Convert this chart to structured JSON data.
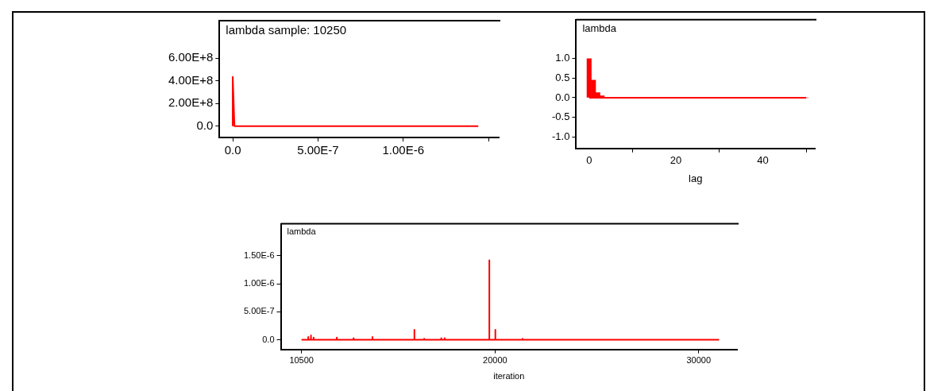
{
  "chart_data": [
    {
      "type": "line",
      "title": "lambda sample: 10250",
      "x": [
        0,
        0,
        1e-08,
        1.44e-06
      ],
      "series": [
        {
          "color": "#ff0000",
          "values": [
            0,
            435000000.0,
            0,
            0
          ]
        }
      ],
      "xlim": [
        -7.8e-08,
        1.56e-06
      ],
      "xticks": [
        {
          "value": 0,
          "label": "0.0"
        },
        {
          "value": 5e-07,
          "label": "5.00E-7"
        },
        {
          "value": 1e-06,
          "label": "1.00E-6"
        },
        {
          "value": 1.5e-06,
          "label": null
        }
      ],
      "ylim": [
        -100000000.0,
        930000000.0
      ],
      "yticks": [
        {
          "value": 0,
          "label": "0.0"
        },
        {
          "value": 200000000.0,
          "label": "2.00E+8"
        },
        {
          "value": 400000000.0,
          "label": "4.00E+8"
        },
        {
          "value": 600000000.0,
          "label": "6.00E+8"
        }
      ],
      "legend": false,
      "marker": "none"
    },
    {
      "type": "bar",
      "title": "lambda",
      "xlabel": "lag",
      "x": [
        0,
        1,
        2,
        3,
        4,
        5,
        6,
        7,
        8,
        9,
        10,
        11,
        12,
        13,
        14,
        15,
        16,
        17,
        18,
        19,
        20,
        21,
        22,
        23,
        24,
        25,
        26,
        27,
        28,
        29,
        30,
        31,
        32,
        33,
        34,
        35,
        36,
        37,
        38,
        39,
        40,
        41,
        42,
        43,
        44,
        45,
        46,
        47,
        48,
        49,
        50
      ],
      "series": [
        {
          "color": "#ff0000",
          "values": [
            1.0,
            0.45,
            0.13,
            0.05,
            0,
            0,
            0,
            0,
            0,
            0,
            0,
            0,
            0,
            0,
            0,
            0,
            0,
            0,
            0,
            0,
            0,
            0,
            0,
            0,
            0,
            0,
            0,
            0,
            0,
            0,
            0,
            0,
            0,
            0,
            0,
            0,
            0,
            0,
            0,
            0,
            0,
            0,
            0,
            0,
            0,
            0,
            0,
            0,
            0,
            0,
            0
          ]
        }
      ],
      "ref_lines": [
        {
          "axis": "y",
          "value": 0,
          "color": "#ff0000"
        }
      ],
      "xlim": [
        -3,
        52
      ],
      "xticks": [
        0,
        20,
        40
      ],
      "ylim": [
        -1.3,
        2.0
      ],
      "yticks": [
        {
          "value": -1,
          "label": "-1.0"
        },
        {
          "value": -0.5,
          "label": "-0.5"
        },
        {
          "value": 0,
          "label": "0.0"
        },
        {
          "value": 0.5,
          "label": "0.5"
        },
        {
          "value": 1,
          "label": "1.0"
        }
      ],
      "legend": false
    },
    {
      "type": "line",
      "title": "lambda",
      "xlabel": "iteration",
      "x": [
        10500,
        10829,
        10830,
        10831,
        10961,
        10962,
        10963,
        11093,
        11094,
        11095,
        12230,
        12231,
        12232,
        13055,
        13056,
        13057,
        13979,
        13980,
        13981,
        16039,
        16040,
        16041,
        16519,
        16520,
        16521,
        17359,
        17360,
        17361,
        17524,
        17525,
        17526,
        19719,
        19720,
        19721,
        20014,
        20015,
        20016,
        21349,
        21350,
        21351,
        31000
      ],
      "series": [
        {
          "color": "#ff0000",
          "values": [
            0,
            0,
            5e-08,
            0,
            0,
            8e-08,
            0,
            0,
            4e-08,
            0,
            0,
            4e-08,
            0,
            0,
            3e-08,
            0,
            0,
            5e-08,
            0,
            0,
            1.8e-07,
            0,
            0,
            2e-08,
            0,
            0,
            3e-08,
            0,
            0,
            3e-08,
            0,
            0,
            1.42e-06,
            0,
            0,
            1.8e-07,
            0,
            0,
            2e-08,
            0,
            0
          ]
        }
      ],
      "xlim": [
        9480,
        31880
      ],
      "xticks": [
        10500,
        20000,
        30000
      ],
      "ylim": [
        -1.7e-07,
        2.07e-06
      ],
      "yticks": [
        {
          "value": 0,
          "label": "0.0"
        },
        {
          "value": 5e-07,
          "label": "5.00E-7"
        },
        {
          "value": 1e-06,
          "label": "1.00E-6"
        },
        {
          "value": 1.5e-06,
          "label": "1.50E-6"
        }
      ],
      "legend": false,
      "marker": "none"
    }
  ]
}
